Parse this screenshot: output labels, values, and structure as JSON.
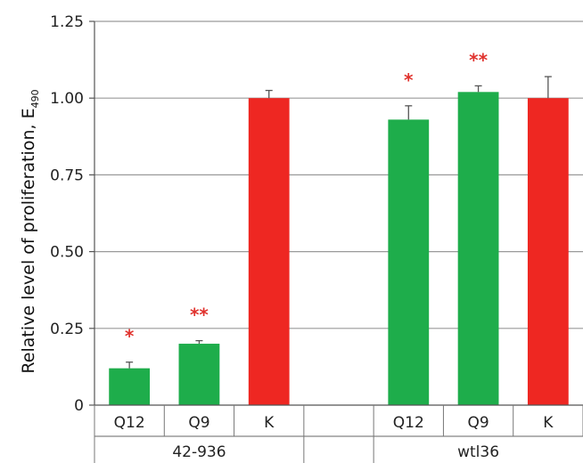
{
  "chart_data": {
    "type": "bar",
    "ylabel_main": "Relative level of proliferation, E",
    "ylabel_sub": "490",
    "ylim": [
      0,
      1.25
    ],
    "yticks": [
      "0",
      "0.25",
      "0.50",
      "0.75",
      "1.00",
      "1.25"
    ],
    "grid": true,
    "groups": [
      {
        "name": "42-936",
        "bars": [
          {
            "label": "Q12",
            "value": 0.12,
            "error": 0.02,
            "color": "#1ead4b",
            "annotation": "*"
          },
          {
            "label": "Q9",
            "value": 0.2,
            "error": 0.01,
            "color": "#1ead4b",
            "annotation": "**"
          },
          {
            "label": "K",
            "value": 1.0,
            "error": 0.025,
            "color": "#ee2722",
            "annotation": ""
          }
        ]
      },
      {
        "name": "",
        "bars": [
          {
            "label": "",
            "value": null,
            "error": null,
            "color": "",
            "annotation": ""
          }
        ]
      },
      {
        "name": "wtl36",
        "bars": [
          {
            "label": "Q12",
            "value": 0.93,
            "error": 0.045,
            "color": "#1ead4b",
            "annotation": "*"
          },
          {
            "label": "Q9",
            "value": 1.02,
            "error": 0.02,
            "color": "#1ead4b",
            "annotation": "**"
          },
          {
            "label": "K",
            "value": 1.0,
            "error": 0.07,
            "color": "#ee2722",
            "annotation": ""
          }
        ]
      }
    ]
  }
}
